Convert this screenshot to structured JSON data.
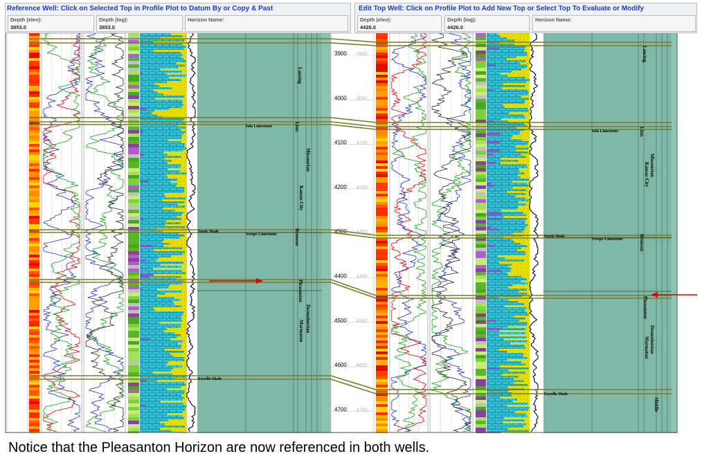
{
  "reference_panel": {
    "title": "Reference Well: Click on Selected Top in Profile Plot to Datum By or Copy & Past",
    "depth_elev": {
      "label": "Depth (elev):",
      "value": "3853.0"
    },
    "depth_log": {
      "label": "Depth (log):",
      "value": "3853.0"
    },
    "horizon_name": {
      "label": "Horizon Name:",
      "value": ""
    }
  },
  "edit_panel": {
    "title": "Edit Top Well: Click on Profile Plot to Add New Top or Select Top To Evaluate or Modify",
    "depth_elev": {
      "label": "Depth (elev):",
      "value": "4426.0"
    },
    "depth_log": {
      "label": "Depth (log):",
      "value": "4426.0"
    },
    "horizon_name": {
      "label": "Horizon Name:",
      "value": ""
    }
  },
  "depth_ticks": [
    {
      "value": "3900",
      "ghost": "3900"
    },
    {
      "value": "4000",
      "ghost": "4000"
    },
    {
      "value": "4100",
      "ghost": "4100"
    },
    {
      "value": "4200",
      "ghost": "4200"
    },
    {
      "value": "4300",
      "ghost": "4300"
    },
    {
      "value": "4400",
      "ghost": "4400"
    },
    {
      "value": "4500",
      "ghost": "4500"
    },
    {
      "value": "4600",
      "ghost": "4600"
    },
    {
      "value": "4700",
      "ghost": "4700"
    }
  ],
  "left_well_tops": [
    "Iola Limestone",
    "Stark Shale",
    "Swope Limestone",
    "Excello Shale"
  ],
  "left_well_units": [
    "Lansing",
    "Linn",
    "Missourian",
    "Kansas City",
    "Bronson",
    "Pleasanton",
    "Desmoinesian",
    "Marmaton"
  ],
  "right_well_tops": [
    "Iola Limestone",
    "Stark Shale",
    "Swope Limestone",
    "Excello Shale"
  ],
  "right_well_units": [
    "Lansing",
    "Linn",
    "Missourian",
    "Kansas City",
    "Bronson",
    "Pleasanton",
    "Desmoinesian",
    "Marmaton",
    "Middle"
  ],
  "colors": {
    "title_blue": "#1a3fbf",
    "panel_green": "#7fb8a6",
    "top_line": "#7a7a2e",
    "arrow_red": "#e00000"
  },
  "caption": "Notice that the Pleasanton Horizon are now referenced in both wells."
}
